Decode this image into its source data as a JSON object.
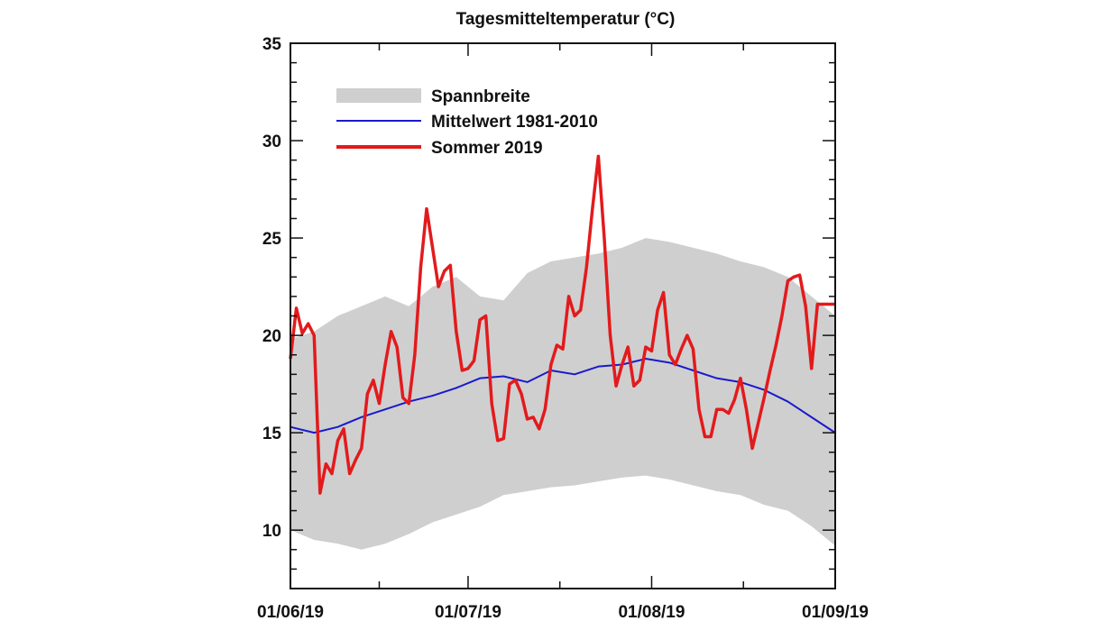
{
  "chart_data": {
    "type": "line",
    "title": "Tagesmitteltemperatur (°C)",
    "xlabel": "",
    "ylabel": "",
    "ylim": [
      7,
      35
    ],
    "y_ticks": [
      10,
      15,
      20,
      25,
      30,
      35
    ],
    "x_ticks": [
      "01/06/19",
      "01/07/19",
      "01/08/19",
      "01/09/19"
    ],
    "x_tick_days": [
      0,
      30,
      61,
      92
    ],
    "days_total": 92,
    "legend": {
      "placement": "top-left"
    },
    "colors": {
      "band": "#cfcfcf",
      "mean": "#1a1acc",
      "summer": "#e31a1c"
    },
    "series": [
      {
        "name": "Spannbreite",
        "style": "band",
        "x": [
          0,
          4,
          8,
          12,
          16,
          20,
          24,
          28,
          32,
          36,
          40,
          44,
          48,
          52,
          56,
          60,
          64,
          68,
          72,
          76,
          80,
          84,
          88,
          92
        ],
        "upper": [
          19.8,
          20.2,
          21.0,
          21.5,
          22.0,
          21.5,
          22.5,
          23.0,
          22.0,
          21.8,
          23.2,
          23.8,
          24.0,
          24.2,
          24.5,
          25.0,
          24.8,
          24.5,
          24.2,
          23.8,
          23.5,
          23.0,
          22.0,
          21.0
        ],
        "lower": [
          10.0,
          9.5,
          9.3,
          9.0,
          9.3,
          9.8,
          10.4,
          10.8,
          11.2,
          11.8,
          12.0,
          12.2,
          12.3,
          12.5,
          12.7,
          12.8,
          12.6,
          12.3,
          12.0,
          11.8,
          11.3,
          11.0,
          10.2,
          9.2
        ]
      },
      {
        "name": "Mittelwert 1981-2010",
        "style": "thin",
        "x": [
          0,
          4,
          8,
          12,
          16,
          20,
          24,
          28,
          32,
          36,
          40,
          44,
          48,
          52,
          56,
          60,
          64,
          68,
          72,
          76,
          80,
          84,
          88,
          92
        ],
        "y": [
          15.3,
          15.0,
          15.3,
          15.8,
          16.2,
          16.6,
          16.9,
          17.3,
          17.8,
          17.9,
          17.6,
          18.2,
          18.0,
          18.4,
          18.5,
          18.8,
          18.6,
          18.2,
          17.8,
          17.6,
          17.2,
          16.6,
          15.8,
          15.0
        ]
      },
      {
        "name": "Sommer 2019",
        "style": "thick",
        "x": [
          0,
          1,
          2,
          3,
          4,
          5,
          6,
          7,
          8,
          9,
          10,
          11,
          12,
          13,
          14,
          15,
          16,
          17,
          18,
          19,
          20,
          21,
          22,
          23,
          24,
          25,
          26,
          27,
          28,
          29,
          30,
          31,
          32,
          33,
          34,
          35,
          36,
          37,
          38,
          39,
          40,
          41,
          42,
          43,
          44,
          45,
          46,
          47,
          48,
          49,
          50,
          51,
          52,
          53,
          54,
          55,
          56,
          57,
          58,
          59,
          60,
          61,
          62,
          63,
          64,
          65,
          66,
          67,
          68,
          69,
          70,
          71,
          72,
          73,
          74,
          75,
          76,
          77,
          78,
          79,
          80,
          81,
          82,
          83,
          84,
          85,
          86,
          87,
          88,
          89,
          90,
          91,
          92
        ],
        "y": [
          18.8,
          21.4,
          20.1,
          20.6,
          20.0,
          11.9,
          13.4,
          12.9,
          14.6,
          15.2,
          12.9,
          13.6,
          14.2,
          17.0,
          17.7,
          16.5,
          18.5,
          20.2,
          19.4,
          16.8,
          16.5,
          19.0,
          23.5,
          26.5,
          24.5,
          22.5,
          23.3,
          23.6,
          20.2,
          18.2,
          18.3,
          18.7,
          20.8,
          21.0,
          16.5,
          14.6,
          14.7,
          17.5,
          17.7,
          17.0,
          15.7,
          15.8,
          15.2,
          16.2,
          18.5,
          19.5,
          19.3,
          22.0,
          21.0,
          21.3,
          23.5,
          26.5,
          29.2,
          25.0,
          20.0,
          17.4,
          18.5,
          19.4,
          17.4,
          17.7,
          19.4,
          19.2,
          21.3,
          22.2,
          19.0,
          18.5,
          19.3,
          20.0,
          19.3,
          16.2,
          14.8,
          14.8,
          16.2,
          16.2,
          16.0,
          16.7,
          17.8,
          16.2,
          14.2,
          15.5,
          16.8,
          18.2,
          19.5,
          21.0,
          22.8,
          23.0,
          23.1,
          21.5,
          18.3,
          21.6,
          21.6,
          21.6,
          21.6
        ]
      }
    ]
  }
}
